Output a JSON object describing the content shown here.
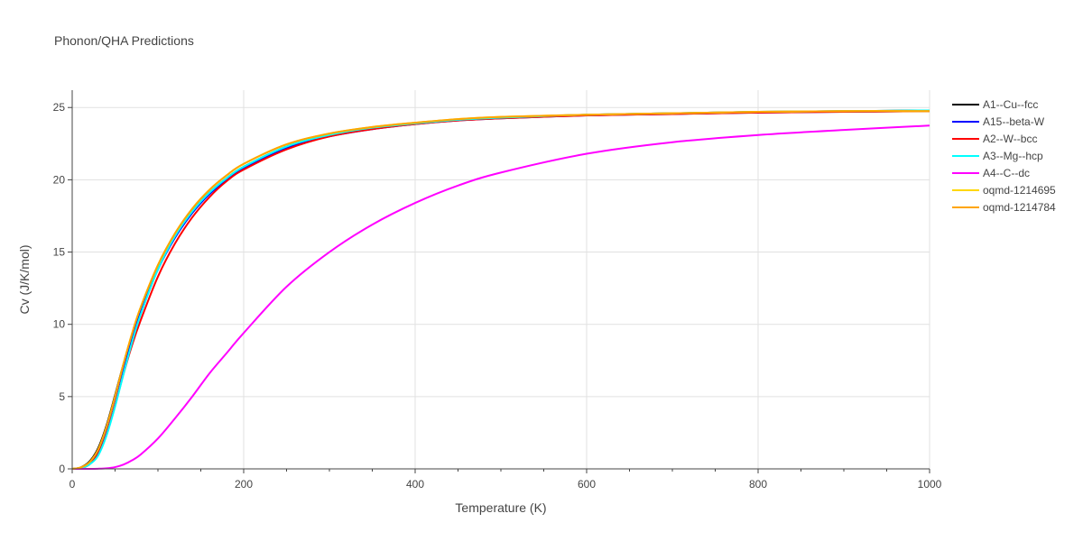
{
  "chart_data": {
    "type": "line",
    "title": "Phonon/QHA Predictions",
    "xlabel": "Temperature (K)",
    "ylabel": "Cv (J/K/mol)",
    "xlim": [
      0,
      1000
    ],
    "ylim": [
      0,
      26.2
    ],
    "xticks": [
      0,
      200,
      400,
      600,
      800,
      1000
    ],
    "yticks": [
      0,
      5,
      10,
      15,
      20,
      25
    ],
    "grid": true,
    "legend_position": "top-right",
    "x": [
      0,
      10,
      20,
      30,
      40,
      50,
      60,
      70,
      80,
      100,
      120,
      140,
      160,
      180,
      200,
      250,
      300,
      350,
      400,
      450,
      500,
      600,
      700,
      800,
      900,
      1000
    ],
    "series": [
      {
        "name": "A1--Cu--fcc",
        "color": "#000000",
        "values": [
          0,
          0.1,
          0.5,
          1.4,
          3.0,
          5.1,
          7.3,
          9.3,
          11.0,
          13.9,
          16.1,
          17.8,
          19.1,
          20.1,
          20.9,
          22.3,
          23.1,
          23.6,
          23.9,
          24.15,
          24.3,
          24.5,
          24.6,
          24.7,
          24.75,
          24.8
        ]
      },
      {
        "name": "A15--beta-W",
        "color": "#0000ff",
        "values": [
          0,
          0.05,
          0.4,
          1.2,
          2.8,
          4.9,
          7.1,
          9.1,
          10.9,
          13.8,
          16.0,
          17.7,
          19.0,
          20.0,
          20.8,
          22.2,
          23.0,
          23.5,
          23.85,
          24.1,
          24.25,
          24.45,
          24.55,
          24.65,
          24.7,
          24.75
        ]
      },
      {
        "name": "A2--W--bcc",
        "color": "#ff0000",
        "values": [
          0,
          0.05,
          0.3,
          1.0,
          2.4,
          4.4,
          6.6,
          8.6,
          10.3,
          13.3,
          15.6,
          17.4,
          18.8,
          19.9,
          20.7,
          22.1,
          23.0,
          23.5,
          23.85,
          24.1,
          24.25,
          24.45,
          24.55,
          24.65,
          24.7,
          24.75
        ]
      },
      {
        "name": "A3--Mg--hcp",
        "color": "#00ffff",
        "values": [
          0,
          0.05,
          0.3,
          0.9,
          2.3,
          4.3,
          6.6,
          8.8,
          10.7,
          13.8,
          16.1,
          17.8,
          19.1,
          20.1,
          20.9,
          22.3,
          23.1,
          23.6,
          23.9,
          24.15,
          24.3,
          24.5,
          24.6,
          24.7,
          24.75,
          24.8
        ]
      },
      {
        "name": "A4--C--dc",
        "color": "#ff00ff",
        "values": [
          0,
          0,
          0,
          0.01,
          0.04,
          0.12,
          0.3,
          0.6,
          1.0,
          2.1,
          3.5,
          5.0,
          6.6,
          8.0,
          9.4,
          12.6,
          15.0,
          16.9,
          18.4,
          19.6,
          20.5,
          21.8,
          22.6,
          23.1,
          23.45,
          23.75
        ]
      },
      {
        "name": "oqmd-1214695",
        "color": "#ffd700",
        "values": [
          0,
          0.1,
          0.45,
          1.3,
          2.9,
          5.0,
          7.3,
          9.4,
          11.2,
          14.1,
          16.3,
          18.0,
          19.3,
          20.3,
          21.1,
          22.45,
          23.2,
          23.65,
          23.95,
          24.2,
          24.35,
          24.5,
          24.6,
          24.7,
          24.75,
          24.75
        ]
      },
      {
        "name": "oqmd-1214784",
        "color": "#ffa500",
        "values": [
          0,
          0.1,
          0.45,
          1.3,
          2.9,
          5.0,
          7.3,
          9.4,
          11.2,
          14.1,
          16.3,
          18.0,
          19.3,
          20.3,
          21.1,
          22.45,
          23.2,
          23.65,
          23.95,
          24.2,
          24.35,
          24.5,
          24.6,
          24.7,
          24.75,
          24.75
        ]
      }
    ]
  }
}
